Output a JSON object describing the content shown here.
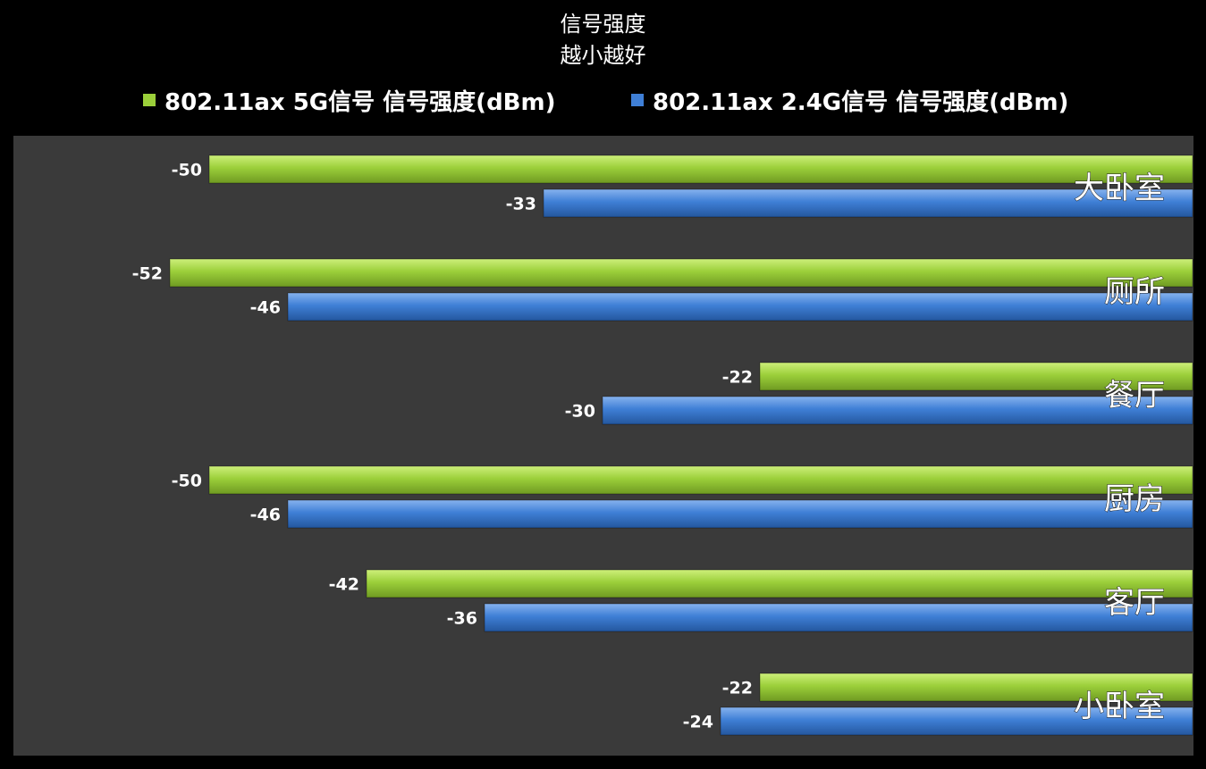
{
  "chart_data": {
    "type": "bar",
    "orientation": "horizontal",
    "title": "信号强度",
    "subtitle": "越小越好",
    "categories": [
      "大卧室",
      "厕所",
      "餐厅",
      "厨房",
      "客厅",
      "小卧室"
    ],
    "series": [
      {
        "name": "802.11ax 5G信号 信号强度(dBm)",
        "color": "#9bcf3a",
        "values": [
          -50,
          -52,
          -22,
          -50,
          -42,
          -22
        ]
      },
      {
        "name": "802.11ax 2.4G信号 信号强度(dBm)",
        "color": "#3f7fd6",
        "values": [
          -33,
          -46,
          -30,
          -46,
          -36,
          -24
        ]
      }
    ],
    "xlim": [
      -60,
      0
    ],
    "axis_direction": "reversed",
    "category_label_position": "right",
    "legend_position": "top",
    "grid": false,
    "plot_background": "#3a3a3a",
    "page_background": "#000000"
  }
}
